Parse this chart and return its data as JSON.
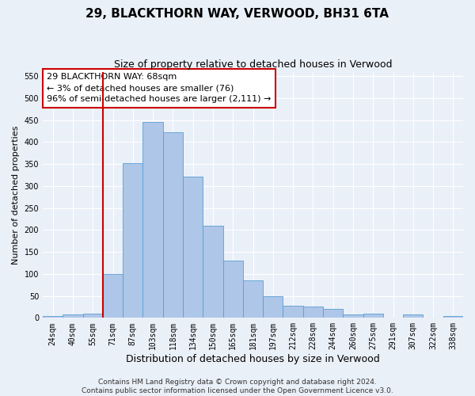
{
  "title": "29, BLACKTHORN WAY, VERWOOD, BH31 6TA",
  "subtitle": "Size of property relative to detached houses in Verwood",
  "xlabel": "Distribution of detached houses by size in Verwood",
  "ylabel": "Number of detached properties",
  "categories": [
    "24sqm",
    "40sqm",
    "55sqm",
    "71sqm",
    "87sqm",
    "103sqm",
    "118sqm",
    "134sqm",
    "150sqm",
    "165sqm",
    "181sqm",
    "197sqm",
    "212sqm",
    "228sqm",
    "244sqm",
    "260sqm",
    "275sqm",
    "291sqm",
    "307sqm",
    "322sqm",
    "338sqm"
  ],
  "values": [
    4,
    7,
    10,
    100,
    352,
    445,
    422,
    322,
    210,
    130,
    85,
    50,
    28,
    25,
    20,
    8,
    10,
    1,
    7,
    1,
    4
  ],
  "bar_color": "#aec6e8",
  "bar_edge_color": "#5a9fd4",
  "vline_index": 3,
  "vline_color": "#cc0000",
  "annotation_text": "29 BLACKTHORN WAY: 68sqm\n← 3% of detached houses are smaller (76)\n96% of semi-detached houses are larger (2,111) →",
  "annotation_box_color": "#ffffff",
  "annotation_box_edge": "#cc0000",
  "footer_text": "Contains HM Land Registry data © Crown copyright and database right 2024.\nContains public sector information licensed under the Open Government Licence v3.0.",
  "ylim": [
    0,
    560
  ],
  "yticks": [
    0,
    50,
    100,
    150,
    200,
    250,
    300,
    350,
    400,
    450,
    500,
    550
  ],
  "bg_color": "#eaf0f8",
  "fig_bg_color": "#eaf0f8",
  "grid_color": "#ffffff",
  "title_fontsize": 11,
  "subtitle_fontsize": 9,
  "xlabel_fontsize": 9,
  "ylabel_fontsize": 8,
  "tick_fontsize": 7,
  "annotation_fontsize": 8,
  "footer_fontsize": 6.5
}
